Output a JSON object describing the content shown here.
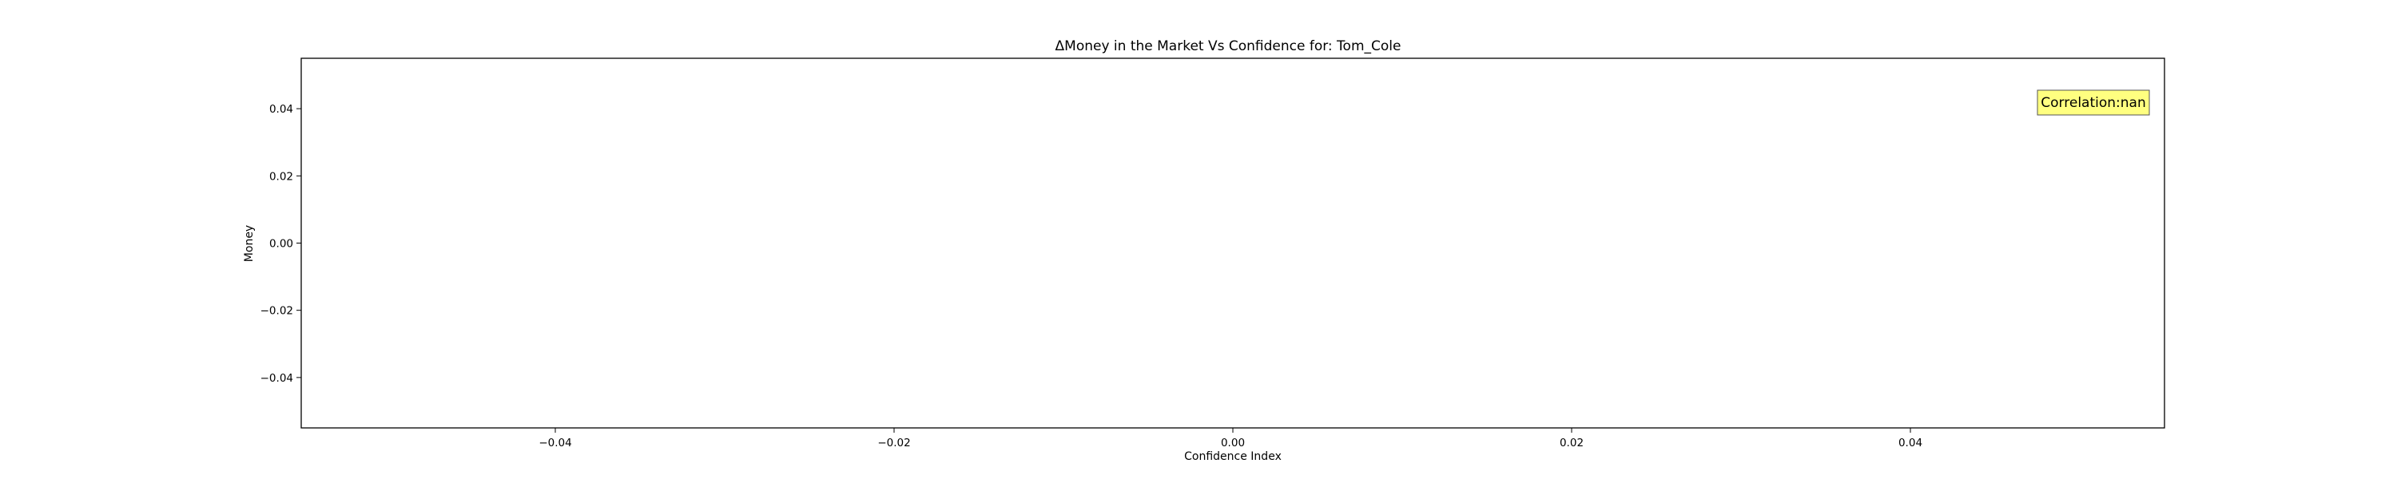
{
  "chart_data": {
    "type": "scatter",
    "title": "ΔMoney in the Market Vs Confidence for: Tom_Cole",
    "xlabel": "Confidence Index",
    "ylabel": "Money",
    "xlim": [
      -0.055,
      0.055
    ],
    "ylim": [
      -0.055,
      0.055
    ],
    "xticks": [
      -0.04,
      -0.02,
      0.0,
      0.02,
      0.04
    ],
    "yticks": [
      -0.04,
      -0.02,
      0.0,
      0.02,
      0.04
    ],
    "xtick_labels": [
      "−0.04",
      "−0.02",
      "0.00",
      "0.02",
      "0.04"
    ],
    "ytick_labels": [
      "−0.04",
      "−0.02",
      "0.00",
      "0.02",
      "0.04"
    ],
    "grid": false,
    "points": [],
    "annotation": {
      "text": "Correlation:nan",
      "placement": "top-right",
      "background": "#ffff80",
      "border": "#555555"
    }
  }
}
